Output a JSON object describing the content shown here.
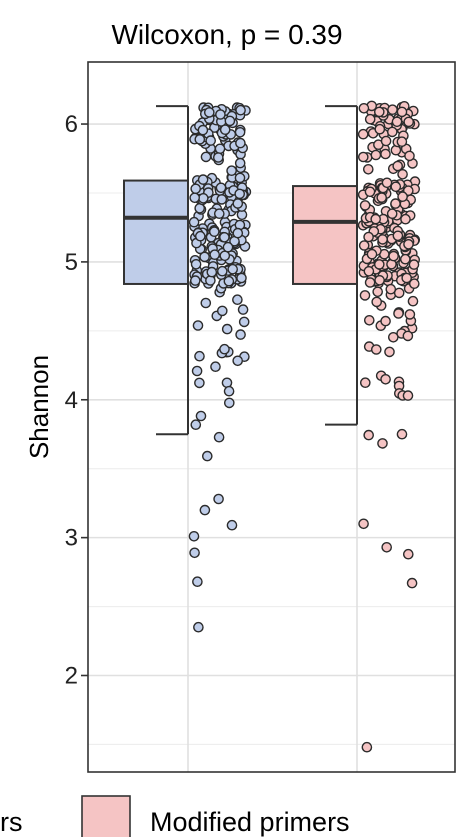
{
  "chart_data": {
    "type": "box",
    "title": "Wilcoxon, p = 0.39",
    "xlabel": "",
    "ylabel": "Shannon",
    "ylim": [
      1.3,
      6.45
    ],
    "yticks": [
      2,
      3,
      4,
      5,
      6
    ],
    "grid": true,
    "legend_position": "bottom",
    "legend": [
      {
        "label": "rs",
        "color": "#bfcde9"
      },
      {
        "label": "Modified primers",
        "color": "#f5c4c4"
      }
    ],
    "series": [
      {
        "name": "",
        "color": "#bfcde9",
        "stats": {
          "whisker_low": 3.75,
          "q1": 4.84,
          "median": 5.32,
          "q3": 5.59,
          "whisker_high": 6.13
        },
        "outliers": [
          3.28,
          3.2,
          3.09,
          3.01,
          2.89,
          2.68,
          2.35
        ],
        "points_range": [
          3.41,
          6.12
        ]
      },
      {
        "name": "Modified primers",
        "color": "#f5c4c4",
        "stats": {
          "whisker_low": 3.82,
          "q1": 4.84,
          "median": 5.29,
          "q3": 5.55,
          "whisker_high": 6.13
        },
        "outliers": [
          3.1,
          2.93,
          2.88,
          2.67,
          1.48
        ],
        "points_range": [
          3.58,
          6.14
        ]
      }
    ]
  }
}
